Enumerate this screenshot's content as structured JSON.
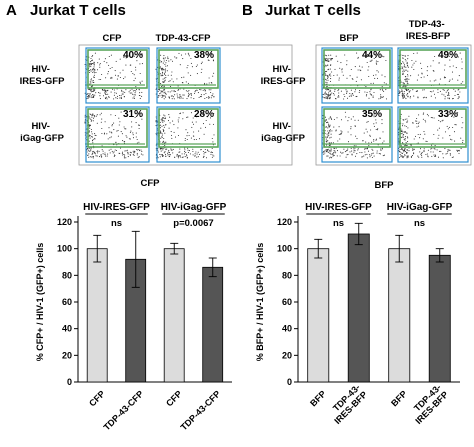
{
  "panels": [
    {
      "letter": "A",
      "title": "Jurkat T cells",
      "flow": {
        "columns": [
          "CFP",
          "TDP-43-CFP"
        ],
        "rows": [
          [
            "HIV-",
            "IRES-GFP"
          ],
          [
            "HIV-",
            "iGag-GFP"
          ]
        ],
        "xlabel": "CFP",
        "percents": [
          [
            "40%",
            "38%"
          ],
          [
            "31%",
            "28%"
          ]
        ]
      }
    },
    {
      "letter": "B",
      "title": "Jurkat T cells",
      "flow": {
        "columns": [
          [
            "BFP"
          ],
          [
            "TDP-43-",
            "IRES-BFP"
          ]
        ],
        "rows": [
          [
            "HIV-",
            "IRES-GFP"
          ],
          [
            "HIV-",
            "iGag-GFP"
          ]
        ],
        "xlabel": "BFP",
        "percents": [
          [
            "44%",
            "49%"
          ],
          [
            "35%",
            "33%"
          ]
        ]
      }
    }
  ],
  "chart_data": [
    {
      "type": "bar",
      "panel": "A",
      "ylabel": "% CFP+ / HIV-1 (GFP+) cells",
      "ylim": [
        0,
        120
      ],
      "yticks": [
        0,
        20,
        40,
        60,
        80,
        100,
        120
      ],
      "categories": [
        [
          "CFP"
        ],
        [
          "TDP-43-CFP"
        ],
        [
          "CFP"
        ],
        [
          "TDP-43-CFP"
        ]
      ],
      "values": [
        100,
        92,
        100,
        86
      ],
      "errors": [
        10,
        21,
        4,
        7
      ],
      "colors": [
        "#dcdcdc",
        "#555555",
        "#dcdcdc",
        "#555555"
      ],
      "groups": [
        {
          "label": "HIV-IRES-GFP",
          "stat": "ns",
          "bars": [
            0,
            1
          ]
        },
        {
          "label": "HIV-iGag-GFP",
          "stat": "p=0.0067",
          "bars": [
            2,
            3
          ]
        }
      ]
    },
    {
      "type": "bar",
      "panel": "B",
      "ylabel": "% BFP+ / HIV-1 (GFP+) cells",
      "ylim": [
        0,
        120
      ],
      "yticks": [
        0,
        20,
        40,
        60,
        80,
        100,
        120
      ],
      "categories": [
        [
          "BFP"
        ],
        [
          "TDP-43-",
          "IRES-BFP"
        ],
        [
          "BFP"
        ],
        [
          "TDP-43-",
          "IRES-BFP"
        ]
      ],
      "values": [
        100,
        111,
        100,
        95
      ],
      "errors": [
        7,
        8,
        10,
        5
      ],
      "colors": [
        "#dcdcdc",
        "#555555",
        "#dcdcdc",
        "#555555"
      ],
      "groups": [
        {
          "label": "HIV-IRES-GFP",
          "stat": "ns",
          "bars": [
            0,
            1
          ]
        },
        {
          "label": "HIV-iGag-GFP",
          "stat": "ns",
          "bars": [
            2,
            3
          ]
        }
      ]
    }
  ]
}
